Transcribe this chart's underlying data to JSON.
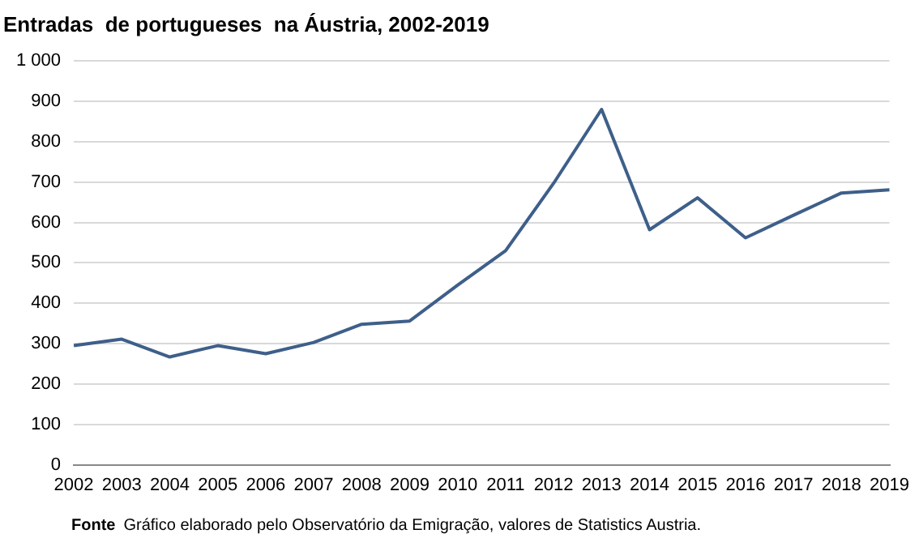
{
  "chart_data": {
    "type": "line",
    "title": "Entradas  de portugueses  na Áustria, 2002-2019",
    "categories": [
      "2002",
      "2003",
      "2004",
      "2005",
      "2006",
      "2007",
      "2008",
      "2009",
      "2010",
      "2011",
      "2012",
      "2013",
      "2014",
      "2015",
      "2016",
      "2017",
      "2018",
      "2019"
    ],
    "series": [
      {
        "color": "#3e5f8a",
        "values": [
          295,
          311,
          267,
          295,
          275,
          303,
          348,
          356,
          445,
          530,
          697,
          880,
          582,
          661,
          562,
          618,
          673,
          681
        ]
      }
    ],
    "ylim": [
      0,
      1000
    ],
    "yticks": [
      0,
      100,
      200,
      300,
      400,
      500,
      600,
      700,
      800,
      900,
      {
        "value": 1000,
        "label": "1 000"
      }
    ],
    "grid": "y",
    "legend": false,
    "marker": "none",
    "line_style": "solid",
    "annotations": [
      "Fonte",
      "Gráfico elaborado pelo  Observatório da Emigração, valores de Statistics Austria."
    ]
  }
}
